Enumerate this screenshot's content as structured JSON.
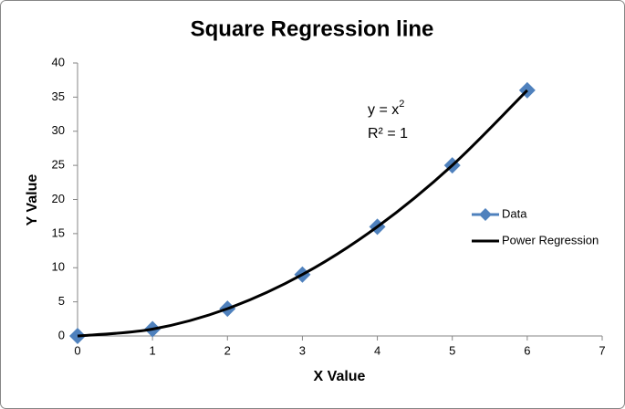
{
  "chart_data": {
    "type": "scatter",
    "title": "Square Regression line",
    "x_label": "X Value",
    "y_label": "Y Value",
    "series": [
      {
        "name": "Data",
        "color": "#4f81bd",
        "x": [
          0,
          1,
          2,
          3,
          4,
          5,
          6
        ],
        "values": [
          0,
          1,
          4,
          9,
          16,
          25,
          36
        ],
        "style": "markers"
      },
      {
        "name": "Power Regression",
        "color": "#000000",
        "x": [
          0,
          1,
          2,
          3,
          4,
          5,
          6
        ],
        "values": [
          0,
          1,
          4,
          9,
          16,
          25,
          36
        ],
        "style": "curve"
      }
    ],
    "annotations": {
      "equation": {
        "text": "y = x",
        "superscript": "2"
      },
      "r_squared": "R² = 1"
    },
    "xlim": [
      0,
      7
    ],
    "xticks": [
      0,
      1,
      2,
      3,
      4,
      5,
      6,
      7
    ],
    "ylim": [
      0,
      40
    ],
    "yticks": [
      0,
      5,
      10,
      15,
      20,
      25,
      30,
      35,
      40
    ],
    "grid": false,
    "legend": "right"
  }
}
